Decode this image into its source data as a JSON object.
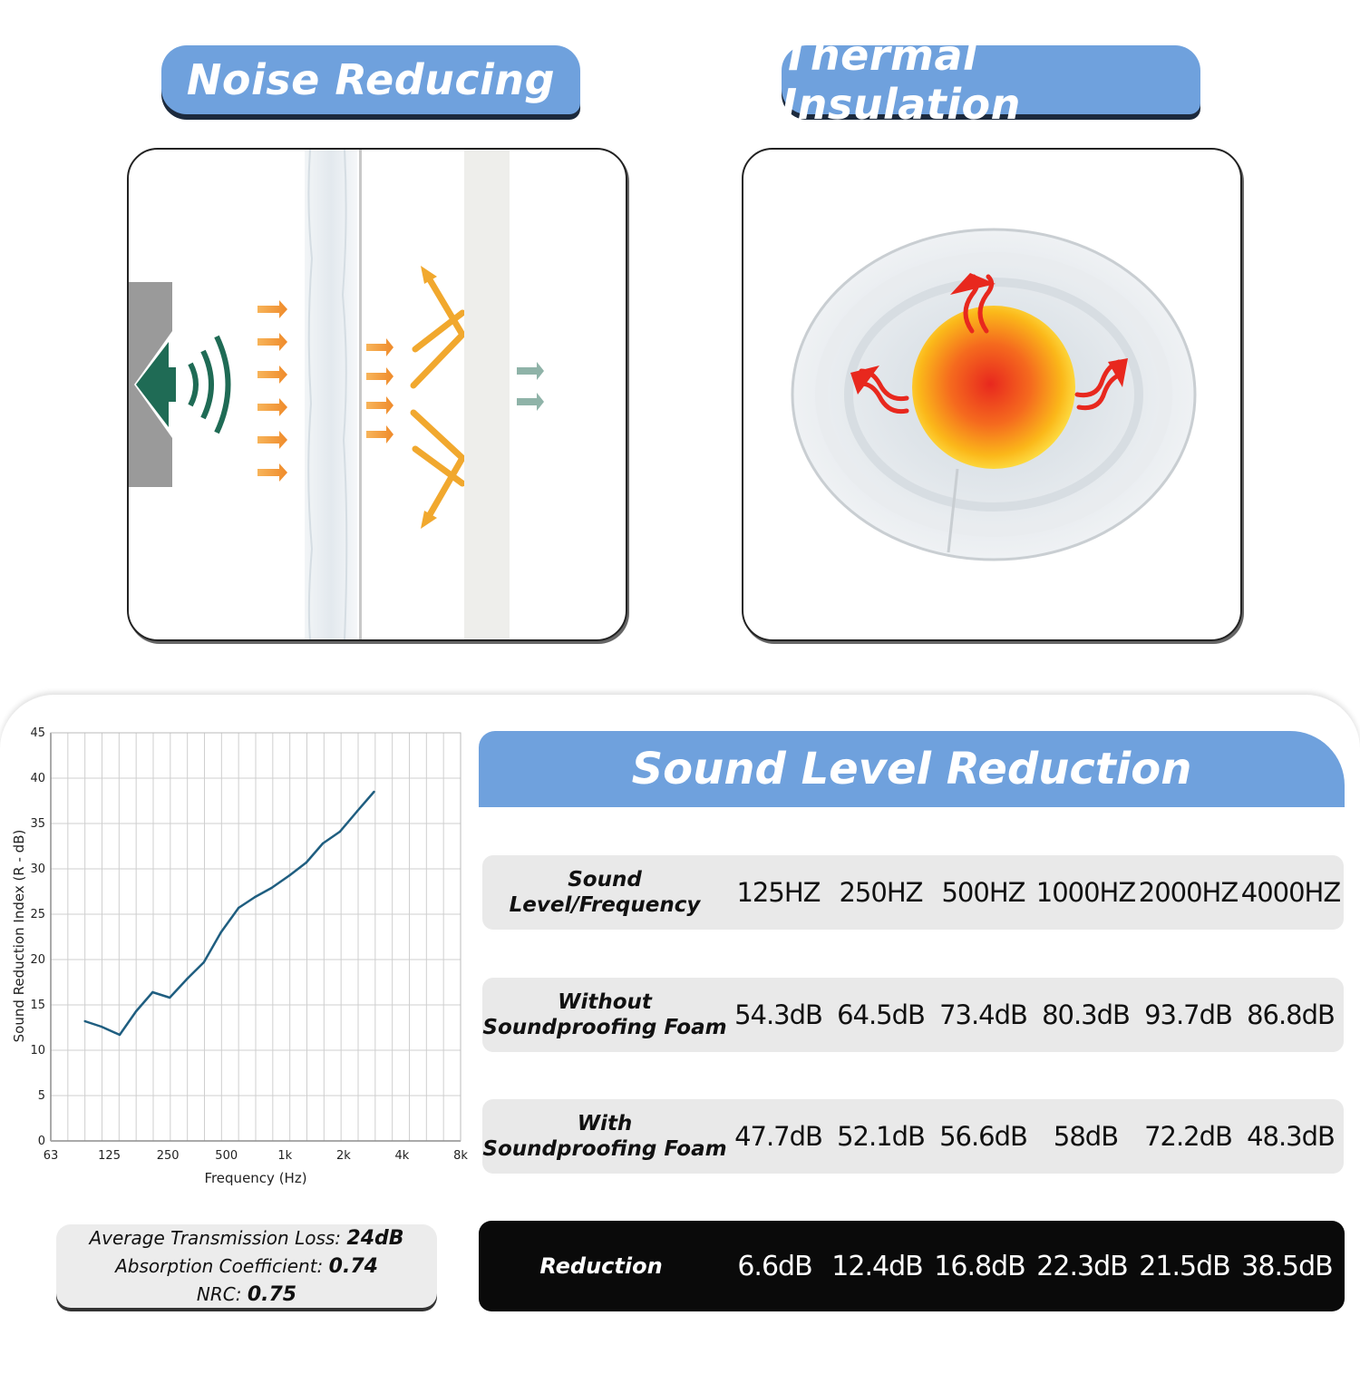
{
  "panels": {
    "noise_title": "Noise Reducing",
    "thermal_title": "Thermal Insulation"
  },
  "colors": {
    "accent_blue": "#6fa1dd",
    "speaker_green": "#1f6b55",
    "arrow_orange": "#f0a030",
    "heat_red": "#e8281e",
    "line_blue": "#1f5e80"
  },
  "chart_data": {
    "type": "line",
    "title": "",
    "xlabel": "Frequency (Hz)",
    "ylabel": "Sound Reduction Index (R - dB)",
    "x_ticks": [
      "63",
      "125",
      "250",
      "500",
      "1k",
      "2k",
      "4k",
      "8k"
    ],
    "y_ticks": [
      "0",
      "5",
      "10",
      "15",
      "20",
      "25",
      "30",
      "35",
      "40",
      "45"
    ],
    "ylim": [
      0,
      45
    ],
    "x_log2_from_63": [
      0,
      8
    ],
    "grid": true,
    "series": [
      {
        "name": "Sound Reduction Index",
        "x": [
          100,
          125,
          160,
          200,
          250,
          315,
          400,
          500,
          630,
          800,
          1000,
          1250,
          1600,
          2000,
          2500,
          3150,
          4000,
          5000
        ],
        "values": [
          13.2,
          12.6,
          11.7,
          14.3,
          16.4,
          15.8,
          17.9,
          19.7,
          23.0,
          25.7,
          26.9,
          27.9,
          29.3,
          30.7,
          32.8,
          34.1,
          36.4,
          38.5
        ]
      }
    ]
  },
  "summary": {
    "avg_loss_label": "Average Transmission Loss: ",
    "avg_loss_value": "24dB",
    "absorption_label": "Absorption Coefficient: ",
    "absorption_value": "0.74",
    "nrc_label": "NRC: ",
    "nrc_value": "0.75"
  },
  "table": {
    "title": "Sound Level Reduction",
    "header": {
      "label": "Sound Level/Frequency",
      "cells": [
        "125HZ",
        "250HZ",
        "500HZ",
        "1000HZ",
        "2000HZ",
        "4000HZ"
      ]
    },
    "without": {
      "label_line1": "Without",
      "label_line2": "Soundproofing Foam",
      "cells": [
        "54.3dB",
        "64.5dB",
        "73.4dB",
        "80.3dB",
        "93.7dB",
        "86.8dB"
      ]
    },
    "with": {
      "label_line1": "With",
      "label_line2": "Soundproofing Foam",
      "cells": [
        "47.7dB",
        "52.1dB",
        "56.6dB",
        "58dB",
        "72.2dB",
        "48.3dB"
      ]
    },
    "reduction": {
      "label": "Reduction",
      "cells": [
        "6.6dB",
        "12.4dB",
        "16.8dB",
        "22.3dB",
        "21.5dB",
        "38.5dB"
      ]
    }
  }
}
